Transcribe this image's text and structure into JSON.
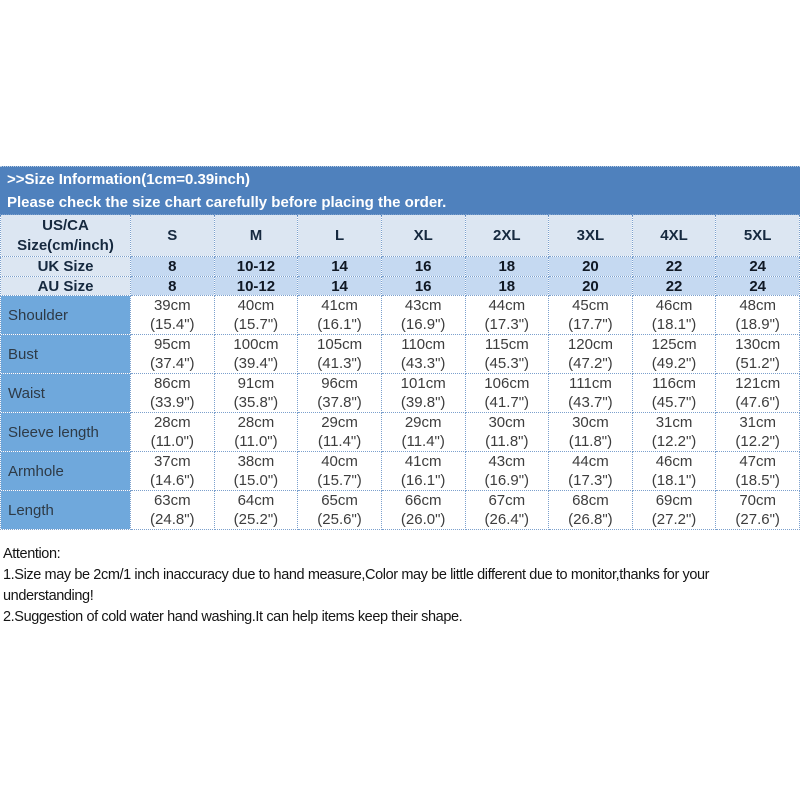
{
  "banner": {
    "line1": ">>Size Information(1cm=0.39inch)",
    "line2": "Please check the size chart carefully before placing the order."
  },
  "table": {
    "corner_line1": "US/CA",
    "corner_line2": "Size(cm/inch)",
    "size_headers": [
      "S",
      "M",
      "L",
      "XL",
      "2XL",
      "3XL",
      "4XL",
      "5XL"
    ],
    "uk_row": {
      "label": "UK Size",
      "values": [
        "8",
        "10-12",
        "14",
        "16",
        "18",
        "20",
        "22",
        "24"
      ]
    },
    "au_row": {
      "label": "AU Size",
      "values": [
        "8",
        "10-12",
        "14",
        "16",
        "18",
        "20",
        "22",
        "24"
      ]
    },
    "measurement_rows": [
      {
        "label": "Shoulder",
        "values": [
          {
            "cm": "39cm",
            "in": "(15.4\")"
          },
          {
            "cm": "40cm",
            "in": "(15.7\")"
          },
          {
            "cm": "41cm",
            "in": "(16.1\")"
          },
          {
            "cm": "43cm",
            "in": "(16.9\")"
          },
          {
            "cm": "44cm",
            "in": "(17.3\")"
          },
          {
            "cm": "45cm",
            "in": "(17.7\")"
          },
          {
            "cm": "46cm",
            "in": "(18.1\")"
          },
          {
            "cm": "48cm",
            "in": "(18.9\")"
          }
        ]
      },
      {
        "label": "Bust",
        "values": [
          {
            "cm": "95cm",
            "in": "(37.4\")"
          },
          {
            "cm": "100cm",
            "in": "(39.4\")"
          },
          {
            "cm": "105cm",
            "in": "(41.3\")"
          },
          {
            "cm": "110cm",
            "in": "(43.3\")"
          },
          {
            "cm": "115cm",
            "in": "(45.3\")"
          },
          {
            "cm": "120cm",
            "in": "(47.2\")"
          },
          {
            "cm": "125cm",
            "in": "(49.2\")"
          },
          {
            "cm": "130cm",
            "in": "(51.2\")"
          }
        ]
      },
      {
        "label": "Waist",
        "values": [
          {
            "cm": "86cm",
            "in": "(33.9\")"
          },
          {
            "cm": "91cm",
            "in": "(35.8\")"
          },
          {
            "cm": "96cm",
            "in": "(37.8\")"
          },
          {
            "cm": "101cm",
            "in": "(39.8\")"
          },
          {
            "cm": "106cm",
            "in": "(41.7\")"
          },
          {
            "cm": "111cm",
            "in": "(43.7\")"
          },
          {
            "cm": "116cm",
            "in": "(45.7\")"
          },
          {
            "cm": "121cm",
            "in": "(47.6\")"
          }
        ]
      },
      {
        "label": "Sleeve length",
        "values": [
          {
            "cm": "28cm",
            "in": "(11.0\")"
          },
          {
            "cm": "28cm",
            "in": "(11.0\")"
          },
          {
            "cm": "29cm",
            "in": "(11.4\")"
          },
          {
            "cm": "29cm",
            "in": "(11.4\")"
          },
          {
            "cm": "30cm",
            "in": "(11.8\")"
          },
          {
            "cm": "30cm",
            "in": "(11.8\")"
          },
          {
            "cm": "31cm",
            "in": "(12.2\")"
          },
          {
            "cm": "31cm",
            "in": "(12.2\")"
          }
        ]
      },
      {
        "label": "Armhole",
        "values": [
          {
            "cm": "37cm",
            "in": "(14.6\")"
          },
          {
            "cm": "38cm",
            "in": "(15.0\")"
          },
          {
            "cm": "40cm",
            "in": "(15.7\")"
          },
          {
            "cm": "41cm",
            "in": "(16.1\")"
          },
          {
            "cm": "43cm",
            "in": "(16.9\")"
          },
          {
            "cm": "44cm",
            "in": "(17.3\")"
          },
          {
            "cm": "46cm",
            "in": "(18.1\")"
          },
          {
            "cm": "47cm",
            "in": "(18.5\")"
          }
        ]
      },
      {
        "label": "Length",
        "values": [
          {
            "cm": "63cm",
            "in": "(24.8\")"
          },
          {
            "cm": "64cm",
            "in": "(25.2\")"
          },
          {
            "cm": "65cm",
            "in": "(25.6\")"
          },
          {
            "cm": "66cm",
            "in": "(26.0\")"
          },
          {
            "cm": "67cm",
            "in": "(26.4\")"
          },
          {
            "cm": "68cm",
            "in": "(26.8\")"
          },
          {
            "cm": "69cm",
            "in": "(27.2\")"
          },
          {
            "cm": "70cm",
            "in": "(27.6\")"
          }
        ]
      }
    ],
    "colors": {
      "banner_bg": "#4f81bd",
      "header_bg": "#dce6f2",
      "subheader_bg": "#c5d9f1",
      "label_column_bg": "#6fa8dc",
      "dotted_border": "#7ba0cd",
      "header_text": "#16293f",
      "body_text": "#3d3d3d"
    }
  },
  "attention": {
    "title": "Attention:",
    "items": [
      "1.Size may be 2cm/1 inch inaccuracy due to hand measure,Color may be little different due to monitor,thanks for your understanding!",
      "2.Suggestion of cold water hand washing.It can help items keep their shape."
    ]
  }
}
